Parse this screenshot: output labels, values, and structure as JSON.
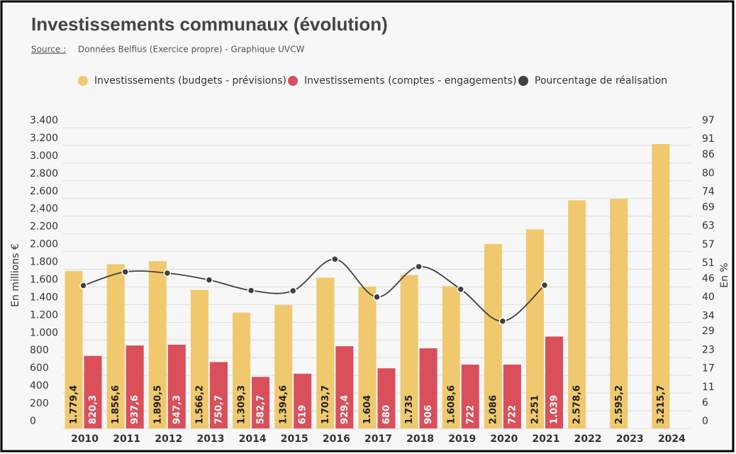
{
  "chart_data": {
    "type": "bar",
    "title": "Investissements communaux (évolution)",
    "source_label": "Source :",
    "source": "Données Belfius (Exercice propre) - Graphique UVCW",
    "y_label": "En millions €",
    "y2_label": "En %",
    "categories": [
      "2010",
      "2011",
      "2012",
      "2013",
      "2014",
      "2015",
      "2016",
      "2017",
      "2018",
      "2019",
      "2020",
      "2021",
      "2022",
      "2023",
      "2024"
    ],
    "series": [
      {
        "name": "Investissements (budgets - prévisions)",
        "color": "#f0c96e",
        "type": "bar",
        "values": [
          1779.4,
          1856.6,
          1890.5,
          1566.2,
          1309.3,
          1394.6,
          1703.7,
          1604,
          1735,
          1608.6,
          2086,
          2251,
          2578.6,
          2595.2,
          3215.7
        ],
        "value_labels": [
          "1.779,4",
          "1.856,6",
          "1.890,5",
          "1.566,2",
          "1.309,3",
          "1.394,6",
          "1.703,7",
          "1.604",
          "1.735",
          "1.608,6",
          "2.086",
          "2.251",
          "2.578,6",
          "2.595,2",
          "3.215,7"
        ]
      },
      {
        "name": "Investissements (comptes - engagements)",
        "color": "#d94f5a",
        "type": "bar",
        "values": [
          820.3,
          937.6,
          947.3,
          750.7,
          582.7,
          619,
          929.4,
          680,
          906,
          722,
          722,
          1039,
          null,
          null,
          null
        ],
        "value_labels": [
          "820,3",
          "937,6",
          "947,3",
          "750,7",
          "582,7",
          "619",
          "929,4",
          "680",
          "906",
          "722",
          "722",
          "1.039",
          null,
          null,
          null
        ]
      },
      {
        "name": "Pourcentage de réalisation",
        "color": "#404040",
        "type": "line",
        "axis": "y2",
        "values": [
          46.1,
          50.5,
          50.1,
          47.9,
          44.5,
          44.4,
          54.6,
          42.4,
          52.2,
          44.9,
          34.6,
          46.2,
          null,
          null,
          null
        ]
      }
    ],
    "ylim": [
      0,
      3400
    ],
    "yticks": [
      0,
      200,
      400,
      600,
      800,
      {
        "value": 1000,
        "label": "1.000"
      },
      {
        "value": 1200,
        "label": "1.200"
      },
      {
        "value": 1400,
        "label": "1.400"
      },
      {
        "value": 1600,
        "label": "1.600"
      },
      {
        "value": 1800,
        "label": "1.800"
      },
      {
        "value": 2000,
        "label": "2.000"
      },
      {
        "value": 2200,
        "label": "2.200"
      },
      {
        "value": 2400,
        "label": "2.400"
      },
      {
        "value": 2600,
        "label": "2.600"
      },
      {
        "value": 2800,
        "label": "2.800"
      },
      {
        "value": 3000,
        "label": "3.000"
      },
      {
        "value": 3200,
        "label": "3.200"
      },
      {
        "value": 3400,
        "label": "3.400"
      }
    ],
    "y2lim": [
      0,
      97
    ],
    "y2ticks": [
      0,
      6,
      11,
      17,
      23,
      29,
      34,
      40,
      46,
      51,
      57,
      63,
      69,
      74,
      80,
      86,
      91,
      97
    ],
    "grid": true,
    "legend": "top"
  }
}
